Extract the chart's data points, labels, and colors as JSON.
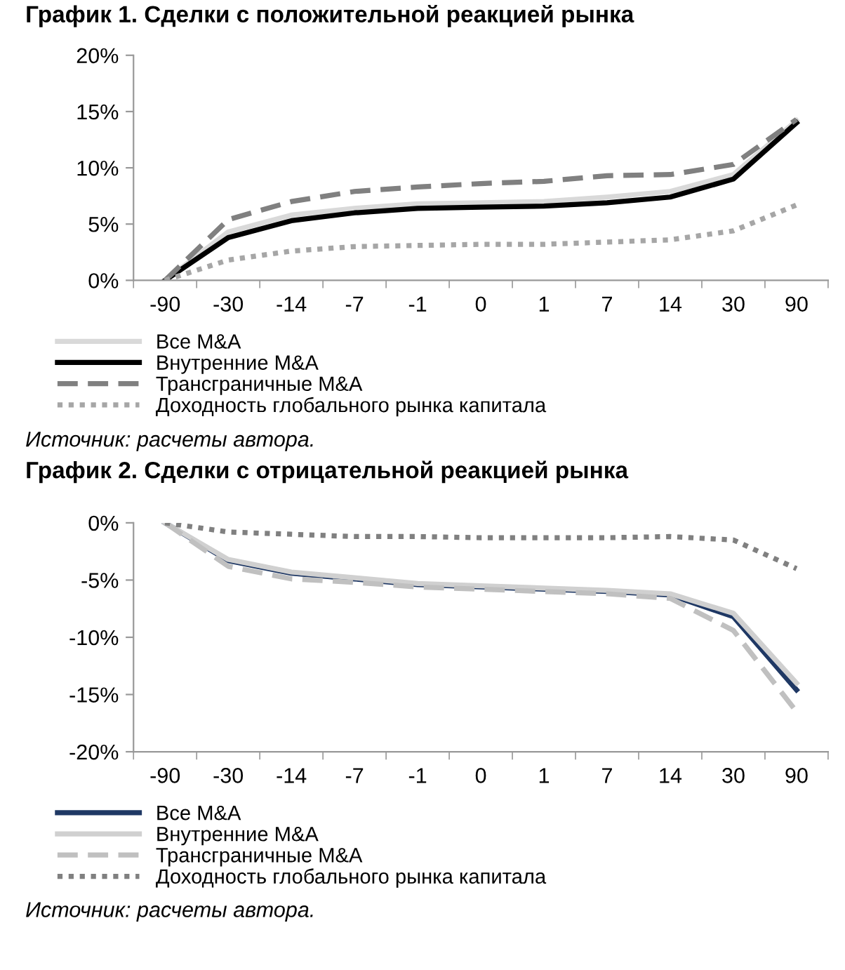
{
  "chart_data": [
    {
      "type": "line",
      "title": "График 1. Сделки с положительной реакцией рынка",
      "categories": [
        "-90",
        "-30",
        "-14",
        "-7",
        "-1",
        "0",
        "1",
        "7",
        "14",
        "30",
        "90"
      ],
      "ylim": [
        0,
        20
      ],
      "yticks": [
        {
          "value": 0,
          "label": "0%"
        },
        {
          "value": 5,
          "label": "5%"
        },
        {
          "value": 10,
          "label": "10%"
        },
        {
          "value": 15,
          "label": "15%"
        },
        {
          "value": 20,
          "label": "20%"
        }
      ],
      "grid": false,
      "legend": "bottom",
      "marker": "none",
      "annotations": [
        "Источник: расчеты автора."
      ],
      "series": [
        {
          "name": "Все M&A",
          "color": "#d9d9d9",
          "line_style": "solid",
          "values": [
            0,
            4.3,
            5.8,
            6.4,
            6.8,
            6.9,
            7.0,
            7.4,
            7.9,
            9.4,
            14.2
          ]
        },
        {
          "name": "Внутренние M&A",
          "color": "#000000",
          "line_style": "solid",
          "values": [
            0,
            3.8,
            5.3,
            6.0,
            6.4,
            6.5,
            6.6,
            6.9,
            7.4,
            9.0,
            14.0
          ]
        },
        {
          "name": "Трансграничные M&A",
          "color": "#808080",
          "line_style": "dashed",
          "values": [
            0,
            5.4,
            7.0,
            7.9,
            8.3,
            8.6,
            8.8,
            9.3,
            9.4,
            10.3,
            14.3
          ]
        },
        {
          "name": "Доходность глобального рынка капитала",
          "color": "#a6a6a6",
          "line_style": "dotted",
          "values": [
            0,
            1.8,
            2.6,
            3.0,
            3.1,
            3.2,
            3.2,
            3.4,
            3.6,
            4.4,
            6.7
          ]
        }
      ]
    },
    {
      "type": "line",
      "title": "График 2. Сделки с отрицательной реакцией рынка",
      "categories": [
        "-90",
        "-30",
        "-14",
        "-7",
        "-1",
        "0",
        "1",
        "7",
        "14",
        "30",
        "90"
      ],
      "ylim": [
        -20,
        0
      ],
      "yticks": [
        {
          "value": -20,
          "label": "-20%"
        },
        {
          "value": -15,
          "label": "-15%"
        },
        {
          "value": -10,
          "label": "-10%"
        },
        {
          "value": -5,
          "label": "-5%"
        },
        {
          "value": 0,
          "label": "0%"
        }
      ],
      "grid": false,
      "legend": "bottom",
      "marker": "none",
      "annotations": [
        "Источник: расчеты автора."
      ],
      "series": [
        {
          "name": "Все M&A",
          "color": "#1f3864",
          "line_style": "solid",
          "values": [
            0,
            -3.3,
            -4.4,
            -4.9,
            -5.4,
            -5.6,
            -5.8,
            -6.0,
            -6.3,
            -8.2,
            -14.6
          ]
        },
        {
          "name": "Внутренние M&A",
          "color": "#d0d0d0",
          "line_style": "solid",
          "values": [
            0,
            -3.2,
            -4.3,
            -4.8,
            -5.3,
            -5.5,
            -5.7,
            -5.9,
            -6.2,
            -7.9,
            -14.0
          ]
        },
        {
          "name": "Трансграничные M&A",
          "color": "#c0c0c0",
          "line_style": "dashed",
          "values": [
            0,
            -3.8,
            -4.9,
            -5.2,
            -5.6,
            -5.8,
            -6.0,
            -6.2,
            -6.6,
            -9.4,
            -16.5
          ]
        },
        {
          "name": "Доходность глобального рынка капитала",
          "color": "#808080",
          "line_style": "dotted",
          "values": [
            0,
            -0.8,
            -1.0,
            -1.2,
            -1.2,
            -1.3,
            -1.3,
            -1.3,
            -1.2,
            -1.5,
            -4.0
          ]
        }
      ]
    }
  ]
}
